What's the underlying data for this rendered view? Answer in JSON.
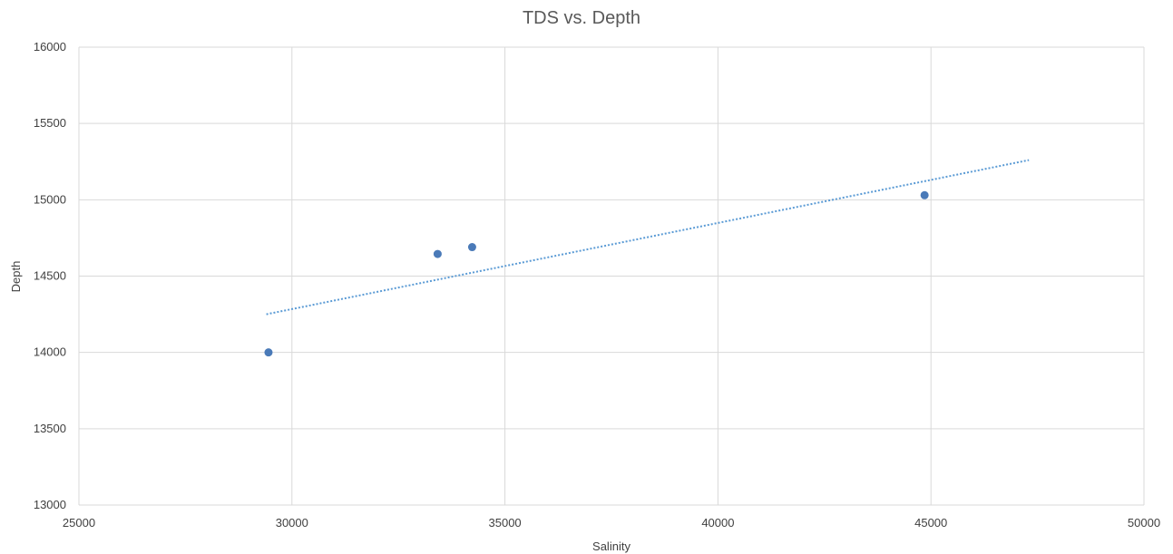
{
  "chart_data": {
    "type": "scatter",
    "title": "TDS vs. Depth",
    "xlabel": "Salinity",
    "ylabel": "Depth",
    "xlim": [
      25000,
      50000
    ],
    "ylim": [
      13000,
      16000
    ],
    "x_ticks": [
      25000,
      30000,
      35000,
      40000,
      45000,
      50000
    ],
    "y_ticks": [
      13000,
      13500,
      14000,
      14500,
      15000,
      15500,
      16000
    ],
    "grid": true,
    "legend": "none",
    "colors": {
      "points": "#4a7ab8",
      "trendline": "#5b9bd5",
      "grid": "#d9d9d9"
    },
    "series": [
      {
        "points": [
          {
            "x": 29450,
            "y": 14000
          },
          {
            "x": 33420,
            "y": 14645
          },
          {
            "x": 34230,
            "y": 14690
          },
          {
            "x": 44850,
            "y": 15030
          }
        ]
      }
    ],
    "trendline": {
      "type": "linear",
      "style": "dotted",
      "from": {
        "x": 29400,
        "y": 14250
      },
      "to": {
        "x": 47300,
        "y": 15260
      }
    }
  }
}
